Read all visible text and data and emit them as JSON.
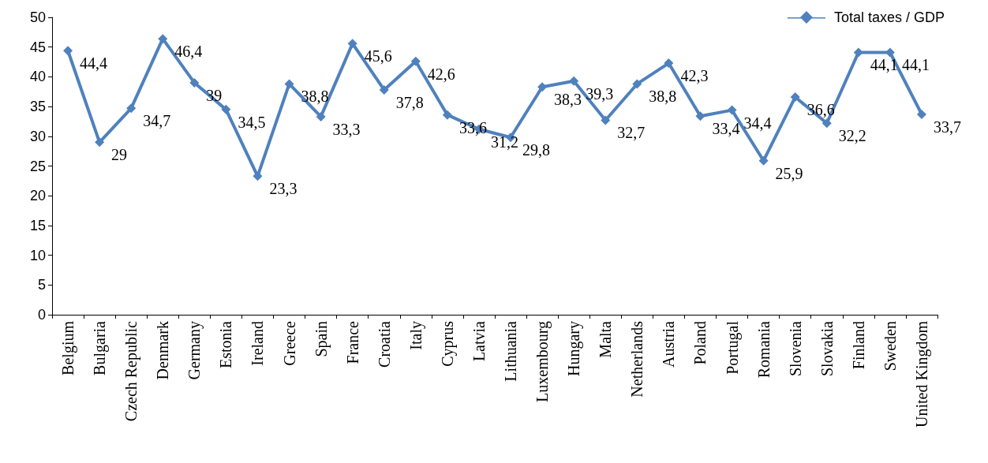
{
  "chart_data": {
    "type": "line",
    "categories": [
      "Belgium",
      "Bulgaria",
      "Czech Republic",
      "Denmark",
      "Germany",
      "Estonia",
      "Ireland",
      "Greece",
      "Spain",
      "France",
      "Croatia",
      "Italy",
      "Cyprus",
      "Latvia",
      "Lithuania",
      "Luxembourg",
      "Hungary",
      "Malta",
      "Netherlands",
      "Austria",
      "Poland",
      "Portugal",
      "Romania",
      "Slovenia",
      "Slovakia",
      "Finland",
      "Sweden",
      "United Kingdom"
    ],
    "series": [
      {
        "name": "Total taxes / GDP",
        "color": "#4f81bd",
        "values": [
          44.4,
          29,
          34.7,
          46.4,
          39,
          34.5,
          23.3,
          38.8,
          33.3,
          45.6,
          37.8,
          42.6,
          33.6,
          31.2,
          29.8,
          38.3,
          39.3,
          32.7,
          38.8,
          42.3,
          33.4,
          34.4,
          25.9,
          36.6,
          32.2,
          44.1,
          44.1,
          33.7
        ],
        "value_labels": [
          "44,4",
          "29",
          "34,7",
          "46,4",
          "39",
          "34,5",
          "23,3",
          "38,8",
          "33,3",
          "45,6",
          "37,8",
          "42,6",
          "33,6",
          "31,2",
          "29,8",
          "38,3",
          "39,3",
          "32,7",
          "38,8",
          "42,3",
          "33,4",
          "34,4",
          "25,9",
          "36,6",
          "32,2",
          "44,1",
          "44,1",
          "33,7"
        ]
      }
    ],
    "ylim": [
      0,
      50
    ],
    "yticks": [
      0,
      5,
      10,
      15,
      20,
      25,
      30,
      35,
      40,
      45,
      50
    ],
    "grid": false,
    "legend": "top right",
    "marker": "diamond",
    "line_style": "solid"
  }
}
